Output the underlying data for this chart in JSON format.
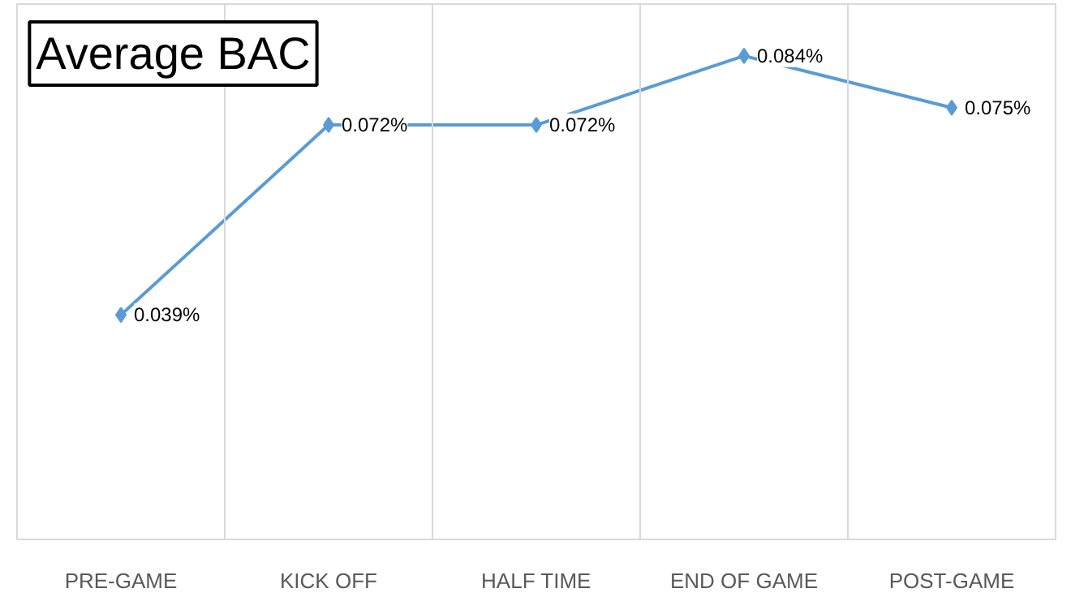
{
  "chart_data": {
    "type": "line",
    "title": "Average BAC",
    "categories": [
      "PRE-GAME",
      "KICK OFF",
      "HALF TIME",
      "END OF GAME",
      "POST-GAME"
    ],
    "series": [
      {
        "color": "#5b9bd5",
        "values": [
          0.039,
          0.072,
          0.072,
          0.084,
          0.075
        ],
        "value_labels": [
          "0.039%",
          "0.072%",
          "0.072%",
          "0.084%",
          "0.075%"
        ]
      }
    ],
    "ylim": [
      0,
      0.093
    ],
    "grid": "x",
    "marker": "diamond",
    "line_style": "solid"
  }
}
